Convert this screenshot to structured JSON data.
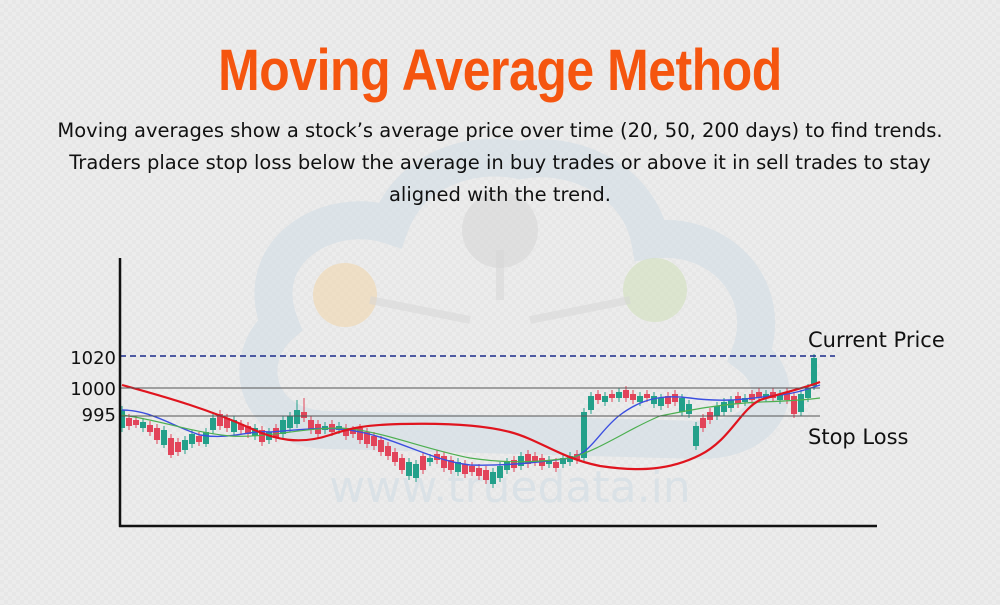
{
  "colors": {
    "title": "#f5550f",
    "bullish": "#23a08a",
    "bearish": "#e2445a",
    "ma_short": "#3b4fe0",
    "ma_mid": "#4caf50",
    "ma_long": "#e0141e",
    "level_line": "#555555",
    "current_price_line": "#1a2a8a",
    "axis": "#111111"
  },
  "header": {
    "title": "Moving Average Method",
    "description": "Moving averages show a stock’s average price over time (20, 50, 200 days) to find trends. Traders place stop loss below the average in buy trades or above it in sell trades to stay aligned with the trend."
  },
  "watermark": {
    "text": "www.truedata.in"
  },
  "chart_data": {
    "type": "line",
    "subtype": "candlestick with moving averages",
    "y_ticks": [
      "1020",
      "1000",
      "995"
    ],
    "levels": [
      {
        "value": 1020,
        "style": "dashed",
        "annotation": "Current Price"
      },
      {
        "value": 1000,
        "style": "solid",
        "annotation": ""
      },
      {
        "value": 995,
        "style": "solid",
        "annotation": "Stop Loss"
      }
    ],
    "x_axis_labels": "none",
    "moving_averages": [
      "blue",
      "green",
      "red"
    ],
    "grid": false,
    "legend": "none"
  }
}
